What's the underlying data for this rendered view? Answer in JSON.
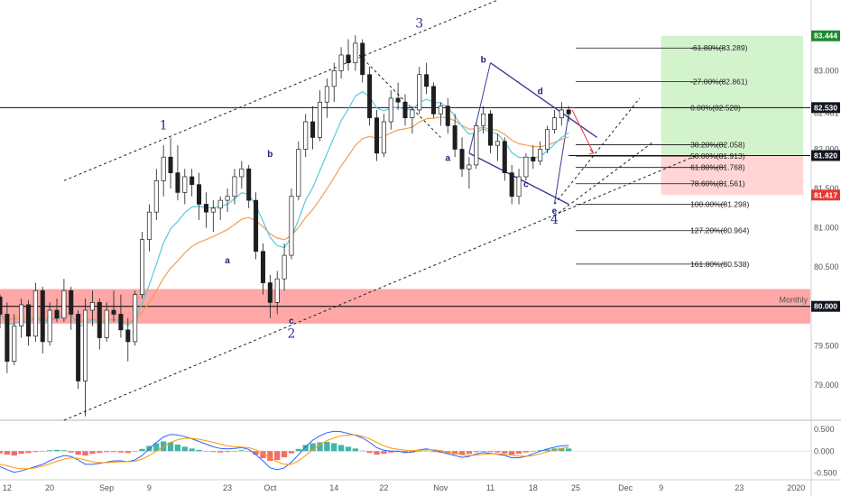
{
  "chart_data": {
    "type": "candlestick",
    "y_range": [
      78.55,
      83.9
    ],
    "x_range_index": [
      0,
      114
    ],
    "colors": {
      "candle": "#1e1e1e",
      "ema_fast": "#5cc8e0",
      "ema_slow": "#f0a050",
      "channel": "#222222",
      "abc_line": "#3a3a9e",
      "support_zone": "#ff8a8a",
      "target_box": "#c8f0c0",
      "stop_box": "#ffd0d0",
      "fib_line": "#111111",
      "macd_up": "#26a69a",
      "macd_down": "#ef5350",
      "macd_line": "#2962ff",
      "signal_line": "#ff9800",
      "badge_green": "#1b8a2f",
      "badge_red": "#e53935",
      "badge_dark": "#131722"
    },
    "price_ticks": [
      "83.000",
      "82.461",
      "82.000",
      "81.500",
      "81.000",
      "80.500",
      "80.000",
      "79.500",
      "79.000"
    ],
    "price_tick_values": [
      83.0,
      82.461,
      82.0,
      81.5,
      81.0,
      80.5,
      80.0,
      79.5,
      79.0
    ],
    "macd_ticks": [
      "0.500",
      "0.000",
      "-0.500"
    ],
    "macd_tick_values": [
      0.5,
      0.0,
      -0.5
    ],
    "macd_range": [
      -0.65,
      0.62
    ],
    "time_ticks": [
      "12",
      "20",
      "Sep",
      "9",
      "23",
      "Oct",
      "14",
      "22",
      "Nov",
      "11",
      "18",
      "25",
      "Dec",
      "9",
      "23",
      "2020"
    ],
    "time_tick_index": [
      1,
      7,
      15,
      21,
      32,
      38,
      47,
      54,
      62,
      69,
      75,
      81,
      88,
      93,
      104,
      112
    ],
    "badges": [
      {
        "label": "83.444",
        "value": 83.444,
        "color": "badge_green"
      },
      {
        "label": "82.530",
        "value": 82.53,
        "color": "badge_dark"
      },
      {
        "label": "81.920",
        "value": 81.92,
        "color": "badge_dark"
      },
      {
        "label": "81.417",
        "value": 81.417,
        "color": "badge_red"
      },
      {
        "label": "80.000",
        "value": 80.0,
        "color": "badge_dark"
      }
    ],
    "monthly_label": "Monthly",
    "monthly_level": 80.0,
    "fib_levels": [
      {
        "label": "-61.80%(83.289)",
        "value": 83.289
      },
      {
        "label": "-27.00%(82.861)",
        "value": 82.861
      },
      {
        "label": "0.00%(82.528)",
        "value": 82.528
      },
      {
        "label": "38.20%(82.058)",
        "value": 82.058
      },
      {
        "label": "50.00%(81.913)",
        "value": 81.913
      },
      {
        "label": "61.80%(81.768)",
        "value": 81.768
      },
      {
        "label": "78.60%(81.561)",
        "value": 81.561
      },
      {
        "label": "100.00%(81.298)",
        "value": 81.298
      },
      {
        "label": "127.20%(80.964)",
        "value": 80.964
      },
      {
        "label": "161.80%(80.538)",
        "value": 80.538
      }
    ],
    "wave_labels": [
      {
        "text": "1",
        "i": 23,
        "v": 82.25,
        "size": "big"
      },
      {
        "text": "3",
        "i": 59,
        "v": 83.55,
        "size": "big"
      },
      {
        "text": "2",
        "i": 41,
        "v": 79.6,
        "size": "big"
      },
      {
        "text": "4",
        "i": 78,
        "v": 81.05,
        "size": "big"
      },
      {
        "text": "a",
        "i": 32,
        "v": 80.55,
        "size": "small"
      },
      {
        "text": "b",
        "i": 38,
        "v": 81.9,
        "size": "small"
      },
      {
        "text": "c",
        "i": 41,
        "v": 79.78,
        "size": "small"
      },
      {
        "text": "a",
        "i": 63,
        "v": 81.85,
        "size": "small"
      },
      {
        "text": "b",
        "i": 68,
        "v": 83.1,
        "size": "small"
      },
      {
        "text": "c",
        "i": 74,
        "v": 81.52,
        "size": "small"
      },
      {
        "text": "d",
        "i": 76,
        "v": 82.7,
        "size": "small"
      },
      {
        "text": "e",
        "i": 78,
        "v": 81.18,
        "size": "small"
      }
    ],
    "candles": [
      [
        80.12,
        80.15,
        79.72,
        79.9
      ],
      [
        79.9,
        80.05,
        79.15,
        79.3
      ],
      [
        79.3,
        79.9,
        79.25,
        79.75
      ],
      [
        79.75,
        80.1,
        79.6,
        80.02
      ],
      [
        80.02,
        80.08,
        79.5,
        79.62
      ],
      [
        79.62,
        80.3,
        79.55,
        80.2
      ],
      [
        80.2,
        80.25,
        79.4,
        79.55
      ],
      [
        79.55,
        80.05,
        79.5,
        79.95
      ],
      [
        79.95,
        80.1,
        79.8,
        79.85
      ],
      [
        79.85,
        80.35,
        79.8,
        80.2
      ],
      [
        80.2,
        80.25,
        79.7,
        79.9
      ],
      [
        79.9,
        79.95,
        78.95,
        79.05
      ],
      [
        79.05,
        80.1,
        78.6,
        79.95
      ],
      [
        79.95,
        80.2,
        79.75,
        80.05
      ],
      [
        80.05,
        80.1,
        79.45,
        79.6
      ],
      [
        79.6,
        80.05,
        79.55,
        79.95
      ],
      [
        79.95,
        80.2,
        79.8,
        79.9
      ],
      [
        79.9,
        80.15,
        79.6,
        79.7
      ],
      [
        79.7,
        79.85,
        79.3,
        79.55
      ],
      [
        79.55,
        80.2,
        79.5,
        80.15
      ],
      [
        80.15,
        80.95,
        80.1,
        80.85
      ],
      [
        80.85,
        81.3,
        80.7,
        81.2
      ],
      [
        81.2,
        81.75,
        81.1,
        81.6
      ],
      [
        81.6,
        82.05,
        81.4,
        81.9
      ],
      [
        81.9,
        82.15,
        81.5,
        81.7
      ],
      [
        81.7,
        82.05,
        81.35,
        81.45
      ],
      [
        81.45,
        81.75,
        81.3,
        81.65
      ],
      [
        81.65,
        81.75,
        81.4,
        81.55
      ],
      [
        81.55,
        81.7,
        81.1,
        81.3
      ],
      [
        81.3,
        81.45,
        81.0,
        81.2
      ],
      [
        81.2,
        81.35,
        80.95,
        81.25
      ],
      [
        81.25,
        81.4,
        81.1,
        81.35
      ],
      [
        81.35,
        81.5,
        81.2,
        81.4
      ],
      [
        81.4,
        81.75,
        81.3,
        81.65
      ],
      [
        81.65,
        81.85,
        81.5,
        81.75
      ],
      [
        81.75,
        81.8,
        81.25,
        81.35
      ],
      [
        81.35,
        81.45,
        80.6,
        80.7
      ],
      [
        80.7,
        80.8,
        80.15,
        80.3
      ],
      [
        80.3,
        80.4,
        79.85,
        80.05
      ],
      [
        80.05,
        80.45,
        79.9,
        80.35
      ],
      [
        80.35,
        80.8,
        80.2,
        80.65
      ],
      [
        80.65,
        81.5,
        80.6,
        81.4
      ],
      [
        81.4,
        82.1,
        81.35,
        82.0
      ],
      [
        82.0,
        82.45,
        81.9,
        82.35
      ],
      [
        82.35,
        82.55,
        82.0,
        82.15
      ],
      [
        82.15,
        82.75,
        82.1,
        82.6
      ],
      [
        82.6,
        82.9,
        82.4,
        82.8
      ],
      [
        82.8,
        83.1,
        82.6,
        83.0
      ],
      [
        83.0,
        83.3,
        82.9,
        83.2
      ],
      [
        83.2,
        83.4,
        83.0,
        83.1
      ],
      [
        83.1,
        83.45,
        83.0,
        83.35
      ],
      [
        83.35,
        83.4,
        82.85,
        82.95
      ],
      [
        82.95,
        83.05,
        82.3,
        82.4
      ],
      [
        82.4,
        82.5,
        81.85,
        81.95
      ],
      [
        81.95,
        82.45,
        81.9,
        82.35
      ],
      [
        82.35,
        82.75,
        82.25,
        82.65
      ],
      [
        82.65,
        82.85,
        82.5,
        82.6
      ],
      [
        82.6,
        82.7,
        82.3,
        82.4
      ],
      [
        82.4,
        82.55,
        82.2,
        82.5
      ],
      [
        82.5,
        83.05,
        82.45,
        82.95
      ],
      [
        82.95,
        83.1,
        82.7,
        82.8
      ],
      [
        82.8,
        82.85,
        82.4,
        82.45
      ],
      [
        82.45,
        82.6,
        82.3,
        82.55
      ],
      [
        82.55,
        82.65,
        82.2,
        82.3
      ],
      [
        82.3,
        82.45,
        81.9,
        82.0
      ],
      [
        82.0,
        82.15,
        81.65,
        81.75
      ],
      [
        81.75,
        81.9,
        81.5,
        81.8
      ],
      [
        81.8,
        82.35,
        81.75,
        82.3
      ],
      [
        82.3,
        82.55,
        82.2,
        82.45
      ],
      [
        82.45,
        82.5,
        81.95,
        82.05
      ],
      [
        82.05,
        82.2,
        81.85,
        82.1
      ],
      [
        82.1,
        82.15,
        81.6,
        81.7
      ],
      [
        81.7,
        81.8,
        81.3,
        81.4
      ],
      [
        81.4,
        81.75,
        81.3,
        81.65
      ],
      [
        81.65,
        81.95,
        81.6,
        81.9
      ],
      [
        81.9,
        82.05,
        81.75,
        81.85
      ],
      [
        81.85,
        82.1,
        81.8,
        82.0
      ],
      [
        82.0,
        82.3,
        81.95,
        82.25
      ],
      [
        82.25,
        82.5,
        82.2,
        82.4
      ],
      [
        82.4,
        82.6,
        82.3,
        82.5
      ],
      [
        82.5,
        82.55,
        82.35,
        82.45
      ]
    ],
    "macd_hist": [
      -0.05,
      -0.08,
      -0.1,
      -0.06,
      -0.04,
      -0.02,
      -0.01,
      0.02,
      0.03,
      0.02,
      -0.03,
      -0.08,
      -0.1,
      -0.06,
      -0.04,
      -0.02,
      -0.02,
      -0.03,
      -0.04,
      -0.01,
      0.05,
      0.12,
      0.18,
      0.22,
      0.2,
      0.15,
      0.1,
      0.06,
      0.03,
      0.0,
      -0.02,
      -0.03,
      -0.02,
      0.0,
      0.02,
      0.0,
      -0.08,
      -0.16,
      -0.22,
      -0.2,
      -0.14,
      -0.05,
      0.05,
      0.14,
      0.18,
      0.2,
      0.21,
      0.18,
      0.14,
      0.1,
      0.06,
      0.01,
      -0.04,
      -0.08,
      -0.06,
      -0.03,
      -0.02,
      -0.04,
      -0.03,
      0.0,
      0.01,
      -0.02,
      -0.03,
      -0.05,
      -0.07,
      -0.08,
      -0.06,
      -0.02,
      0.0,
      -0.02,
      -0.03,
      -0.05,
      -0.08,
      -0.06,
      -0.03,
      0.0,
      0.02,
      0.04,
      0.06,
      0.07,
      0.06
    ],
    "macd_line": [
      -0.35,
      -0.42,
      -0.48,
      -0.45,
      -0.4,
      -0.35,
      -0.3,
      -0.22,
      -0.15,
      -0.1,
      -0.12,
      -0.2,
      -0.3,
      -0.3,
      -0.28,
      -0.25,
      -0.22,
      -0.22,
      -0.24,
      -0.2,
      -0.1,
      0.05,
      0.2,
      0.32,
      0.38,
      0.37,
      0.33,
      0.28,
      0.22,
      0.16,
      0.1,
      0.06,
      0.05,
      0.06,
      0.08,
      0.04,
      -0.08,
      -0.22,
      -0.38,
      -0.42,
      -0.38,
      -0.25,
      -0.08,
      0.1,
      0.25,
      0.35,
      0.42,
      0.45,
      0.44,
      0.4,
      0.36,
      0.3,
      0.2,
      0.08,
      0.02,
      0.0,
      0.0,
      -0.03,
      -0.02,
      0.03,
      0.05,
      0.02,
      -0.02,
      -0.06,
      -0.1,
      -0.14,
      -0.12,
      -0.06,
      -0.03,
      -0.05,
      -0.07,
      -0.1,
      -0.15,
      -0.15,
      -0.12,
      -0.06,
      0.0,
      0.05,
      0.09,
      0.12,
      0.13
    ],
    "signal_line": [
      -0.3,
      -0.33,
      -0.38,
      -0.4,
      -0.4,
      -0.38,
      -0.34,
      -0.29,
      -0.23,
      -0.18,
      -0.15,
      -0.16,
      -0.2,
      -0.24,
      -0.26,
      -0.26,
      -0.25,
      -0.24,
      -0.24,
      -0.23,
      -0.18,
      -0.1,
      0.0,
      0.1,
      0.2,
      0.26,
      0.29,
      0.29,
      0.27,
      0.24,
      0.2,
      0.16,
      0.12,
      0.1,
      0.09,
      0.08,
      0.03,
      -0.05,
      -0.15,
      -0.24,
      -0.3,
      -0.3,
      -0.22,
      -0.1,
      0.03,
      0.15,
      0.24,
      0.3,
      0.35,
      0.37,
      0.37,
      0.34,
      0.28,
      0.2,
      0.12,
      0.07,
      0.04,
      0.02,
      0.01,
      0.02,
      0.03,
      0.03,
      0.01,
      -0.02,
      -0.05,
      -0.08,
      -0.1,
      -0.09,
      -0.07,
      -0.06,
      -0.06,
      -0.07,
      -0.09,
      -0.11,
      -0.12,
      -0.1,
      -0.06,
      -0.02,
      0.02,
      0.06,
      0.09
    ]
  }
}
